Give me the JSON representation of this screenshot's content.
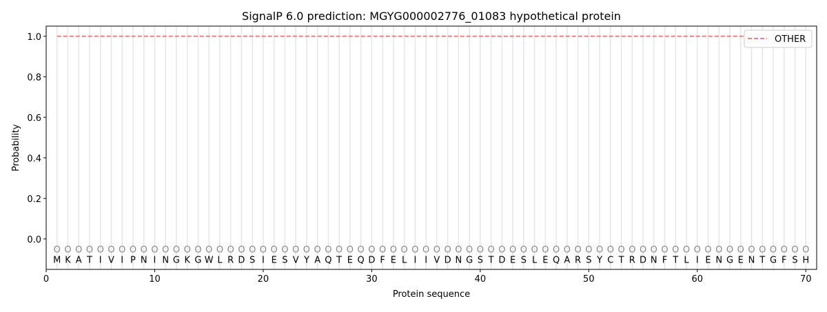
{
  "chart_data": {
    "type": "line",
    "title": "SignalP 6.0 prediction: MGYG000002776_01083 hypothetical protein",
    "xlabel": "Protein sequence",
    "ylabel": "Probability",
    "xlim": [
      0,
      71
    ],
    "ylim": [
      -0.15,
      1.05
    ],
    "xticks": [
      0,
      10,
      20,
      30,
      40,
      50,
      60,
      70
    ],
    "yticks": [
      0.0,
      0.2,
      0.4,
      0.6,
      0.8,
      1.0
    ],
    "ytick_labels": [
      "0.0",
      "0.2",
      "0.4",
      "0.6",
      "0.8",
      "1.0"
    ],
    "grid": "vertical lines at each residue",
    "legend_position": "top-right",
    "sequence": [
      "M",
      "K",
      "A",
      "T",
      "I",
      "V",
      "I",
      "P",
      "N",
      "I",
      "N",
      "G",
      "K",
      "G",
      "W",
      "L",
      "R",
      "D",
      "S",
      "I",
      "E",
      "S",
      "V",
      "Y",
      "A",
      "Q",
      "T",
      "E",
      "Q",
      "D",
      "F",
      "E",
      "L",
      "I",
      "I",
      "V",
      "D",
      "N",
      "G",
      "S",
      "T",
      "D",
      "E",
      "S",
      "L",
      "E",
      "Q",
      "A",
      "R",
      "S",
      "Y",
      "C",
      "T",
      "R",
      "D",
      "N",
      "F",
      "T",
      "L",
      "I",
      "E",
      "N",
      "G",
      "E",
      "N",
      "T",
      "G",
      "F",
      "S",
      "H"
    ],
    "predicted_label": "O",
    "series": [
      {
        "name": "OTHER",
        "color": "#f08080",
        "style": "dashed",
        "x_range": [
          1,
          70
        ],
        "value": 1.0
      }
    ]
  }
}
